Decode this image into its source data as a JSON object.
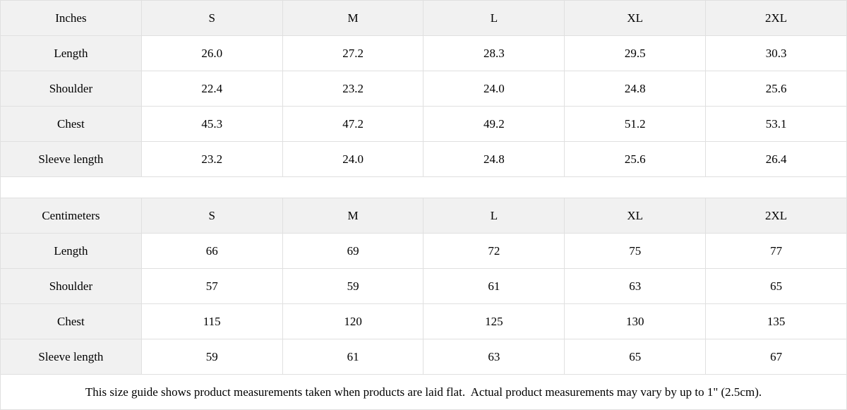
{
  "colors": {
    "header_bg": "#f1f1f1",
    "cell_bg": "#ffffff",
    "border": "#e0e0e0",
    "text": "#000000"
  },
  "inches_table": {
    "unit_label": "Inches",
    "size_headers": [
      "S",
      "M",
      "L",
      "XL",
      "2XL"
    ],
    "rows": [
      {
        "label": "Length",
        "values": [
          "26.0",
          "27.2",
          "28.3",
          "29.5",
          "30.3"
        ]
      },
      {
        "label": "Shoulder",
        "values": [
          "22.4",
          "23.2",
          "24.0",
          "24.8",
          "25.6"
        ]
      },
      {
        "label": "Chest",
        "values": [
          "45.3",
          "47.2",
          "49.2",
          "51.2",
          "53.1"
        ]
      },
      {
        "label": "Sleeve length",
        "values": [
          "23.2",
          "24.0",
          "24.8",
          "25.6",
          "26.4"
        ]
      }
    ]
  },
  "centimeters_table": {
    "unit_label": "Centimeters",
    "size_headers": [
      "S",
      "M",
      "L",
      "XL",
      "2XL"
    ],
    "rows": [
      {
        "label": "Length",
        "values": [
          "66",
          "69",
          "72",
          "75",
          "77"
        ]
      },
      {
        "label": "Shoulder",
        "values": [
          "57",
          "59",
          "61",
          "63",
          "65"
        ]
      },
      {
        "label": "Chest",
        "values": [
          "115",
          "120",
          "125",
          "130",
          "135"
        ]
      },
      {
        "label": "Sleeve length",
        "values": [
          "59",
          "61",
          "63",
          "65",
          "67"
        ]
      }
    ]
  },
  "footnote": "This size guide shows product measurements taken when products are laid flat.  Actual product measurements may vary by up to 1\" (2.5cm)."
}
